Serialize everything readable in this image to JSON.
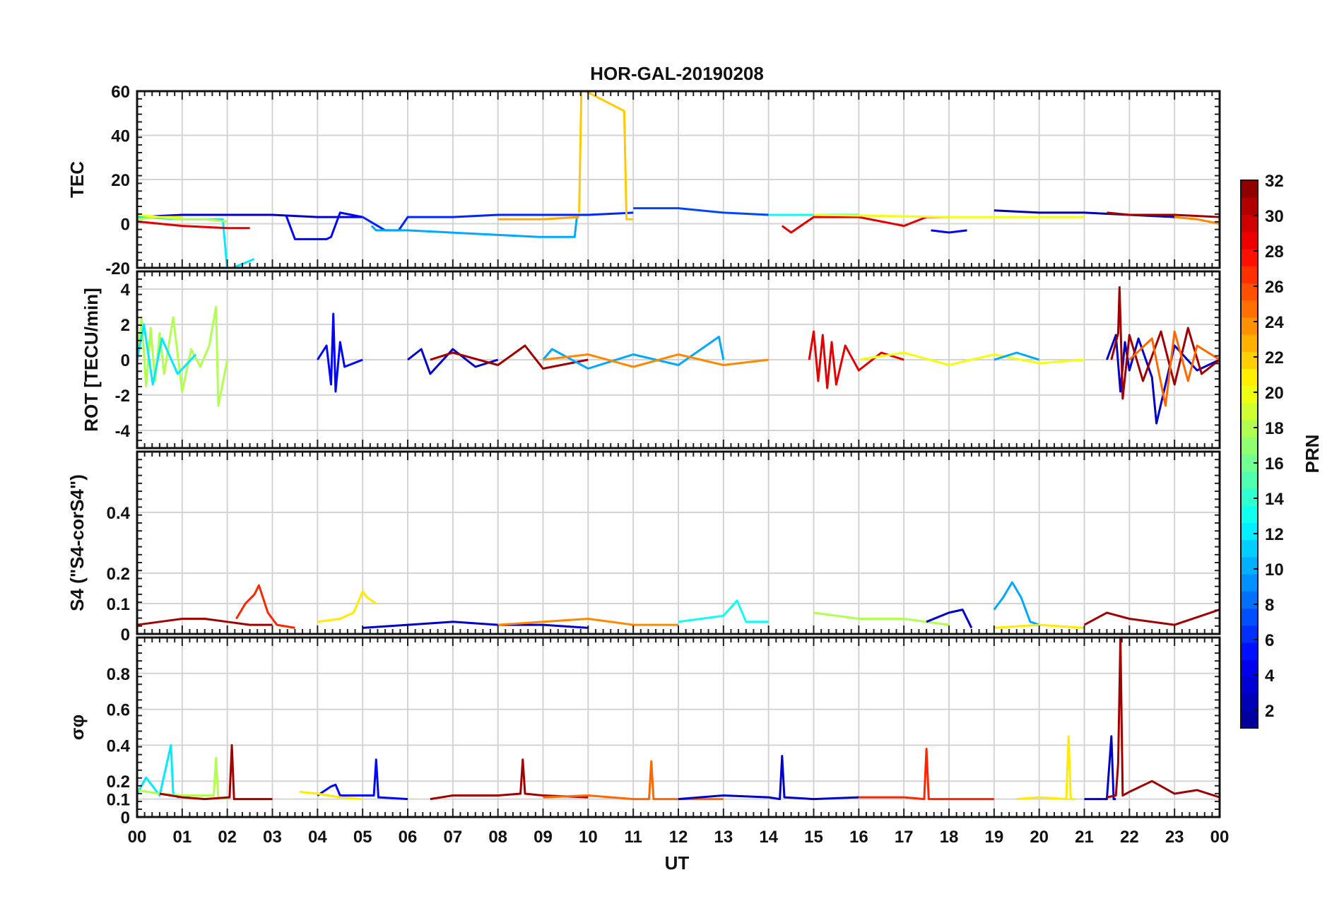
{
  "figure": {
    "title": "HOR-GAL-20190208",
    "xlabel": "UT",
    "x_tick_labels": [
      "00",
      "01",
      "02",
      "03",
      "04",
      "05",
      "06",
      "07",
      "08",
      "09",
      "10",
      "11",
      "12",
      "13",
      "14",
      "15",
      "16",
      "17",
      "18",
      "19",
      "20",
      "21",
      "22",
      "23",
      "00"
    ]
  },
  "colorbar": {
    "label": "PRN",
    "range": [
      1,
      32
    ],
    "tick_labels": [
      "2",
      "4",
      "6",
      "8",
      "10",
      "12",
      "14",
      "16",
      "18",
      "20",
      "22",
      "24",
      "26",
      "28",
      "30",
      "32"
    ],
    "colormap": [
      "#00008f",
      "#0000ff",
      "#0080ff",
      "#00ffff",
      "#80ff80",
      "#ffff00",
      "#ff8000",
      "#ff0000",
      "#800000"
    ]
  },
  "chart_data": [
    {
      "type": "line",
      "panel": "TEC",
      "ylabel": "TEC",
      "ylim": [
        -20,
        60
      ],
      "yticks": [
        "60",
        "40",
        "20",
        "0",
        "-20"
      ],
      "x_unit": "hours UT",
      "series": [
        {
          "prn": 3,
          "x": [
            0,
            1,
            2,
            3,
            4,
            5
          ],
          "y": [
            3,
            4,
            4,
            4,
            3,
            3
          ]
        },
        {
          "prn": 5,
          "x": [
            3.3,
            3.5,
            4.2,
            4.3,
            4.5,
            5
          ],
          "y": [
            4,
            -7,
            -7,
            -6,
            5,
            3
          ]
        },
        {
          "prn": 6,
          "x": [
            5,
            5.5,
            5.8,
            6,
            6.3,
            7,
            8,
            9,
            10,
            11
          ],
          "y": [
            3,
            -3,
            -3,
            3,
            3,
            3,
            4,
            4,
            4,
            5
          ]
        },
        {
          "prn": 12,
          "x": [
            0,
            1,
            1.9,
            2,
            2.6
          ],
          "y": [
            3,
            2,
            2,
            -21,
            -16
          ]
        },
        {
          "prn": 10,
          "x": [
            5.2,
            5.3,
            5.6,
            6,
            8.9,
            9.7,
            9.75
          ],
          "y": [
            -1,
            -3,
            -3,
            -3,
            -6,
            -6,
            3
          ]
        },
        {
          "prn": 18,
          "x": [
            0,
            0.5,
            1,
            1.5,
            2
          ],
          "y": [
            2,
            3,
            2,
            2,
            1
          ]
        },
        {
          "prn": 20,
          "x": [
            0,
            0.5,
            1
          ],
          "y": [
            4,
            3,
            3
          ]
        },
        {
          "prn": 22,
          "x": [
            9.8,
            9.85,
            10.8,
            10.85,
            11
          ],
          "y": [
            5,
            61,
            51,
            2,
            2
          ]
        },
        {
          "prn": 23,
          "x": [
            8,
            9,
            9.8
          ],
          "y": [
            2,
            2,
            3
          ]
        },
        {
          "prn": 29,
          "x": [
            0,
            1,
            2,
            2.5
          ],
          "y": [
            1,
            -1,
            -2,
            -2
          ]
        },
        {
          "prn": 7,
          "x": [
            11,
            12,
            13,
            14
          ],
          "y": [
            7,
            7,
            5,
            4
          ]
        },
        {
          "prn": 13,
          "x": [
            14,
            15,
            16
          ],
          "y": [
            4,
            4,
            4
          ]
        },
        {
          "prn": 29,
          "x": [
            14.3,
            14.5,
            15,
            16,
            17,
            17.5,
            18
          ],
          "y": [
            -1,
            -4,
            3,
            3,
            -1,
            3,
            3
          ]
        },
        {
          "prn": 5,
          "x": [
            17.6,
            18,
            18.4
          ],
          "y": [
            -3,
            -4,
            -3
          ]
        },
        {
          "prn": 2,
          "x": [
            19,
            20,
            21,
            22,
            23
          ],
          "y": [
            6,
            5,
            5,
            4,
            3
          ]
        },
        {
          "prn": 20,
          "x": [
            15,
            18,
            20,
            21
          ],
          "y": [
            4,
            3,
            3,
            3
          ]
        },
        {
          "prn": 31,
          "x": [
            21.5,
            22,
            23,
            24
          ],
          "y": [
            5,
            4,
            4,
            3
          ]
        },
        {
          "prn": 24,
          "x": [
            23,
            23.5,
            24
          ],
          "y": [
            3,
            2,
            0
          ]
        }
      ]
    },
    {
      "type": "line",
      "panel": "ROT",
      "ylabel": "ROT [TECU/min]",
      "ylim": [
        -5,
        5
      ],
      "yticks": [
        "4",
        "2",
        "0",
        "-2",
        "-4"
      ],
      "x_unit": "hours UT",
      "series": [
        {
          "prn": 18,
          "x": [
            0,
            0.1,
            0.2,
            0.3,
            0.4,
            0.5,
            0.6,
            0.8,
            1,
            1.2,
            1.4,
            1.6,
            1.75,
            1.8,
            2
          ],
          "y": [
            0,
            2.4,
            -1.5,
            1.8,
            -1.2,
            1.5,
            -0.8,
            2.4,
            -1.8,
            0.6,
            -0.4,
            0.8,
            3,
            -2.6,
            0
          ]
        },
        {
          "prn": 12,
          "x": [
            0,
            0.15,
            0.35,
            0.55,
            0.9,
            1.3
          ],
          "y": [
            0,
            2,
            -1.4,
            1.2,
            -0.8,
            0.3
          ]
        },
        {
          "prn": 5,
          "x": [
            4,
            4.2,
            4.3,
            4.35,
            4.4,
            4.5,
            4.6,
            5
          ],
          "y": [
            0,
            0.8,
            -1.4,
            2.6,
            -1.8,
            1,
            -0.4,
            0
          ]
        },
        {
          "prn": 3,
          "x": [
            6,
            6.3,
            6.5,
            7,
            7.5,
            8
          ],
          "y": [
            0,
            0.6,
            -0.8,
            0.6,
            -0.4,
            0
          ]
        },
        {
          "prn": 31,
          "x": [
            6.5,
            7,
            8,
            8.6,
            9,
            10
          ],
          "y": [
            0,
            0.4,
            -0.3,
            0.8,
            -0.5,
            0
          ]
        },
        {
          "prn": 10,
          "x": [
            9,
            9.2,
            10,
            11,
            12,
            12.9,
            13
          ],
          "y": [
            0,
            0.6,
            -0.5,
            0.3,
            -0.3,
            1.3,
            0
          ]
        },
        {
          "prn": 24,
          "x": [
            9,
            10,
            11,
            12,
            13,
            14
          ],
          "y": [
            0,
            0.3,
            -0.4,
            0.3,
            -0.3,
            0
          ]
        },
        {
          "prn": 29,
          "x": [
            14.9,
            15,
            15.1,
            15.2,
            15.3,
            15.4,
            15.5,
            15.7,
            16,
            16.5,
            17
          ],
          "y": [
            0,
            1.6,
            -1.2,
            1.4,
            -1.6,
            1,
            -1.4,
            0.8,
            -0.6,
            0.4,
            0
          ]
        },
        {
          "prn": 20,
          "x": [
            16,
            17,
            18,
            19,
            20,
            21
          ],
          "y": [
            0,
            0.4,
            -0.3,
            0.3,
            -0.2,
            0
          ]
        },
        {
          "prn": 10,
          "x": [
            19,
            19.5,
            20
          ],
          "y": [
            0,
            0.4,
            0
          ]
        },
        {
          "prn": 3,
          "x": [
            21.5,
            21.7,
            21.8,
            21.9,
            22,
            22.2,
            22.5,
            22.6,
            23,
            23.5,
            24
          ],
          "y": [
            0,
            1.4,
            -1.8,
            1,
            -0.6,
            1.2,
            -1,
            -3.6,
            0.8,
            -0.6,
            0
          ]
        },
        {
          "prn": 31,
          "x": [
            21.6,
            21.75,
            21.78,
            21.85,
            22,
            22.3,
            22.7,
            23,
            23.3,
            23.6,
            24
          ],
          "y": [
            0,
            1.5,
            4.1,
            -2.2,
            1.4,
            -1.2,
            1.6,
            -1.4,
            1.8,
            -0.8,
            0
          ]
        },
        {
          "prn": 25,
          "x": [
            22,
            22.5,
            22.8,
            23,
            23.3,
            23.5,
            24
          ],
          "y": [
            0,
            1.2,
            -2.6,
            1.6,
            -1.2,
            0.8,
            0
          ]
        }
      ]
    },
    {
      "type": "line",
      "panel": "S4",
      "ylabel": "S4 (\"S4-corS4\")",
      "ylim": [
        0,
        0.6
      ],
      "yticks": [
        "0.4",
        "0.2",
        "0.1",
        "0"
      ],
      "x_unit": "hours UT",
      "series": [
        {
          "prn": 31,
          "x": [
            0,
            0.5,
            1,
            1.5,
            2,
            2.5,
            3
          ],
          "y": [
            0.03,
            0.04,
            0.05,
            0.05,
            0.04,
            0.03,
            0.03
          ]
        },
        {
          "prn": 27,
          "x": [
            2.2,
            2.4,
            2.6,
            2.7,
            2.9,
            3.1,
            3.5
          ],
          "y": [
            0.05,
            0.1,
            0.13,
            0.16,
            0.07,
            0.03,
            0.02
          ]
        },
        {
          "prn": 21,
          "x": [
            4,
            4.5,
            4.8,
            5,
            5.1,
            5.3
          ],
          "y": [
            0.04,
            0.05,
            0.07,
            0.14,
            0.12,
            0.1
          ]
        },
        {
          "prn": 3,
          "x": [
            5,
            6,
            7,
            8,
            9,
            10
          ],
          "y": [
            0.02,
            0.03,
            0.04,
            0.03,
            0.03,
            0.02
          ]
        },
        {
          "prn": 24,
          "x": [
            8,
            9,
            10,
            11,
            12
          ],
          "y": [
            0.03,
            0.04,
            0.05,
            0.03,
            0.03
          ]
        },
        {
          "prn": 13,
          "x": [
            12,
            12.5,
            13,
            13.3,
            13.5,
            14
          ],
          "y": [
            0.04,
            0.05,
            0.06,
            0.11,
            0.04,
            0.04
          ]
        },
        {
          "prn": 18,
          "x": [
            15,
            16,
            17,
            18
          ],
          "y": [
            0.07,
            0.05,
            0.05,
            0.03
          ]
        },
        {
          "prn": 3,
          "x": [
            17.5,
            18,
            18.3,
            18.5
          ],
          "y": [
            0.04,
            0.07,
            0.08,
            0.02
          ]
        },
        {
          "prn": 10,
          "x": [
            19,
            19.2,
            19.4,
            19.6,
            19.8,
            20
          ],
          "y": [
            0.08,
            0.12,
            0.17,
            0.12,
            0.04,
            0.03
          ]
        },
        {
          "prn": 31,
          "x": [
            21,
            21.5,
            22,
            23,
            23.6,
            24
          ],
          "y": [
            0.03,
            0.07,
            0.05,
            0.03,
            0.06,
            0.08
          ]
        },
        {
          "prn": 21,
          "x": [
            19,
            20,
            21
          ],
          "y": [
            0.02,
            0.03,
            0.02
          ]
        }
      ]
    },
    {
      "type": "line",
      "panel": "sigma_phi",
      "ylabel": "σφ",
      "ylim": [
        0,
        1
      ],
      "yticks": [
        "0.8",
        "0.6",
        "0.4",
        "0.2",
        "0.1",
        "0"
      ],
      "x_unit": "hours UT",
      "series": [
        {
          "prn": 12,
          "x": [
            0,
            0.2,
            0.5,
            0.75,
            0.8,
            0.9,
            1.2
          ],
          "y": [
            0.13,
            0.22,
            0.12,
            0.4,
            0.13,
            0.11,
            0.12
          ]
        },
        {
          "prn": 18,
          "x": [
            0,
            0.5,
            1,
            1.7,
            1.75,
            1.8,
            2
          ],
          "y": [
            0.15,
            0.13,
            0.12,
            0.12,
            0.33,
            0.11,
            0.1
          ]
        },
        {
          "prn": 31,
          "x": [
            0.5,
            1,
            1.5,
            2.05,
            2.1,
            2.15,
            2.5,
            3
          ],
          "y": [
            0.13,
            0.11,
            0.1,
            0.11,
            0.4,
            0.1,
            0.1,
            0.1
          ]
        },
        {
          "prn": 5,
          "x": [
            4,
            4.3,
            4.4,
            4.5,
            5,
            5.25,
            5.3,
            5.35,
            6
          ],
          "y": [
            0.12,
            0.17,
            0.18,
            0.12,
            0.12,
            0.12,
            0.32,
            0.11,
            0.1
          ]
        },
        {
          "prn": 21,
          "x": [
            3.6,
            4,
            4.5,
            5
          ],
          "y": [
            0.14,
            0.13,
            0.11,
            0.1
          ]
        },
        {
          "prn": 31,
          "x": [
            6.5,
            7,
            8,
            8.5,
            8.55,
            8.6,
            9,
            10
          ],
          "y": [
            0.1,
            0.12,
            0.12,
            0.13,
            0.32,
            0.13,
            0.12,
            0.11
          ]
        },
        {
          "prn": 25,
          "x": [
            9,
            10,
            11,
            11.35,
            11.4,
            11.45,
            12,
            13
          ],
          "y": [
            0.11,
            0.12,
            0.1,
            0.1,
            0.31,
            0.1,
            0.1,
            0.1
          ]
        },
        {
          "prn": 3,
          "x": [
            12,
            13,
            14,
            14.25,
            14.3,
            14.35,
            15,
            16
          ],
          "y": [
            0.1,
            0.12,
            0.11,
            0.1,
            0.34,
            0.11,
            0.1,
            0.11
          ]
        },
        {
          "prn": 27,
          "x": [
            16,
            17,
            17.45,
            17.5,
            17.55,
            18,
            19
          ],
          "y": [
            0.11,
            0.11,
            0.1,
            0.38,
            0.1,
            0.1,
            0.1
          ]
        },
        {
          "prn": 21,
          "x": [
            19.5,
            20,
            20.6,
            20.65,
            20.7,
            20.8
          ],
          "y": [
            0.1,
            0.11,
            0.1,
            0.45,
            0.1,
            0.1
          ]
        },
        {
          "prn": 3,
          "x": [
            21,
            21.5,
            21.6,
            21.65,
            21.7
          ],
          "y": [
            0.1,
            0.1,
            0.45,
            0.1,
            0.1
          ]
        },
        {
          "prn": 31,
          "x": [
            21.5,
            21.7,
            21.75,
            21.8,
            21.85,
            22,
            22.5,
            23,
            23.5,
            24
          ],
          "y": [
            0.11,
            0.12,
            0.3,
            1,
            0.12,
            0.14,
            0.2,
            0.13,
            0.15,
            0.11
          ]
        }
      ]
    }
  ]
}
